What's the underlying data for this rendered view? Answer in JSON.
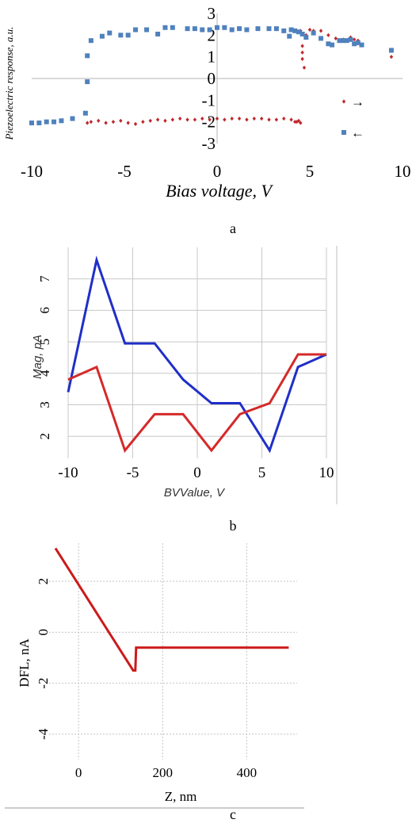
{
  "chart_data": [
    {
      "type": "scatter",
      "caption": "a",
      "xlabel": "Bias voltage, V",
      "ylabel": "Piezoelectric response, a.u.",
      "xlim": [
        -10,
        10
      ],
      "ylim": [
        -3,
        3
      ],
      "x_ticks": [
        -10,
        -5,
        0,
        5,
        10
      ],
      "y_ticks": [
        -3,
        -2,
        -1,
        0,
        1,
        2,
        3
      ],
      "legend_position": "right",
      "series": [
        {
          "name": "→",
          "color": "#c0282d",
          "marker": "diamond",
          "x": [
            -7.0,
            -6.8,
            -6.4,
            -6.0,
            -5.6,
            -5.2,
            -4.8,
            -4.4,
            -4.0,
            -3.6,
            -3.2,
            -2.8,
            -2.4,
            -2.0,
            -1.6,
            -1.2,
            -0.8,
            -0.4,
            0.0,
            0.4,
            0.8,
            1.2,
            1.6,
            2.0,
            2.4,
            2.8,
            3.2,
            3.6,
            4.0,
            4.2,
            4.3,
            4.4,
            4.5,
            4.5,
            4.6,
            4.6,
            4.6,
            4.7,
            4.8,
            5.0,
            5.2,
            5.6,
            6.0,
            6.4,
            6.8,
            7.0,
            7.2,
            7.4,
            7.6,
            9.4
          ],
          "y": [
            -2.05,
            -2.0,
            -1.95,
            -2.05,
            -2.0,
            -1.95,
            -2.05,
            -2.1,
            -2.0,
            -1.95,
            -1.9,
            -1.95,
            -1.9,
            -1.85,
            -1.9,
            -1.9,
            -1.85,
            -1.9,
            -1.85,
            -1.9,
            -1.85,
            -1.85,
            -1.9,
            -1.85,
            -1.85,
            -1.9,
            -1.9,
            -1.85,
            -1.9,
            -2.0,
            -2.0,
            -1.95,
            -2.05,
            2.2,
            1.2,
            1.5,
            0.9,
            0.5,
            2.0,
            2.25,
            2.2,
            2.2,
            2.0,
            1.85,
            1.8,
            1.75,
            1.9,
            1.8,
            1.75,
            1.0
          ]
        },
        {
          "name": "←",
          "color": "#4f81bd",
          "marker": "square",
          "x": [
            -10.0,
            -9.6,
            -9.2,
            -8.8,
            -8.4,
            -7.8,
            -7.1,
            -7.0,
            -7.0,
            -6.8,
            -6.2,
            -5.8,
            -5.2,
            -4.8,
            -4.4,
            -3.8,
            -3.2,
            -2.8,
            -2.4,
            -1.6,
            -1.2,
            -0.8,
            -0.4,
            0.0,
            0.4,
            0.8,
            1.2,
            1.6,
            2.2,
            2.8,
            3.2,
            3.6,
            3.9,
            4.0,
            4.2,
            4.4,
            4.6,
            4.8,
            5.2,
            5.6,
            6.0,
            6.2,
            6.6,
            6.8,
            7.0,
            7.2,
            7.4,
            7.6,
            7.8,
            9.4
          ],
          "y": [
            -2.05,
            -2.05,
            -2.0,
            -2.0,
            -1.95,
            -1.85,
            -1.6,
            -0.15,
            1.05,
            1.75,
            1.95,
            2.1,
            2.0,
            2.0,
            2.25,
            2.25,
            2.05,
            2.35,
            2.35,
            2.3,
            2.3,
            2.25,
            2.25,
            2.35,
            2.35,
            2.25,
            2.3,
            2.25,
            2.3,
            2.3,
            2.3,
            2.2,
            1.95,
            2.25,
            2.2,
            2.15,
            2.05,
            1.9,
            2.1,
            1.85,
            1.6,
            1.55,
            1.75,
            1.75,
            1.75,
            1.8,
            1.6,
            1.65,
            1.55,
            1.3
          ]
        }
      ]
    },
    {
      "type": "line",
      "caption": "b",
      "xlabel": "BVValue, V",
      "ylabel": "Mag, pA",
      "xlim": [
        -10,
        10
      ],
      "ylim": [
        1.3,
        8.0
      ],
      "x_ticks": [
        -10,
        -5,
        0,
        5,
        10
      ],
      "y_ticks": [
        2,
        3,
        4,
        5,
        6,
        7
      ],
      "grid": true,
      "series": [
        {
          "color": "#1f2fc8",
          "x": [
            -10,
            -7.8,
            -5.6,
            -3.3,
            -1.1,
            1.1,
            3.3,
            5.6,
            7.8,
            10
          ],
          "y": [
            3.4,
            7.6,
            4.95,
            4.95,
            3.8,
            3.05,
            3.05,
            1.55,
            4.2,
            4.6
          ]
        },
        {
          "color": "#d42a2a",
          "x": [
            -10,
            -7.8,
            -5.6,
            -3.3,
            -1.1,
            1.1,
            3.3,
            5.6,
            7.8,
            10
          ],
          "y": [
            3.8,
            4.2,
            1.55,
            2.7,
            2.7,
            1.55,
            2.7,
            3.05,
            4.6,
            4.6
          ]
        }
      ]
    },
    {
      "type": "line",
      "caption": "c",
      "xlabel": "Z, nm",
      "ylabel": "DFL, nA",
      "xlim": [
        -70,
        520
      ],
      "ylim": [
        -5.0,
        3.5
      ],
      "x_ticks": [
        0,
        200,
        400
      ],
      "y_ticks": [
        2,
        0,
        -2,
        -4
      ],
      "grid": true,
      "series": [
        {
          "color": "#cc1a1a",
          "x": [
            -55,
            130,
            135,
            137,
            500
          ],
          "y": [
            3.3,
            -1.5,
            -1.5,
            -0.6,
            -0.6
          ]
        }
      ]
    }
  ]
}
